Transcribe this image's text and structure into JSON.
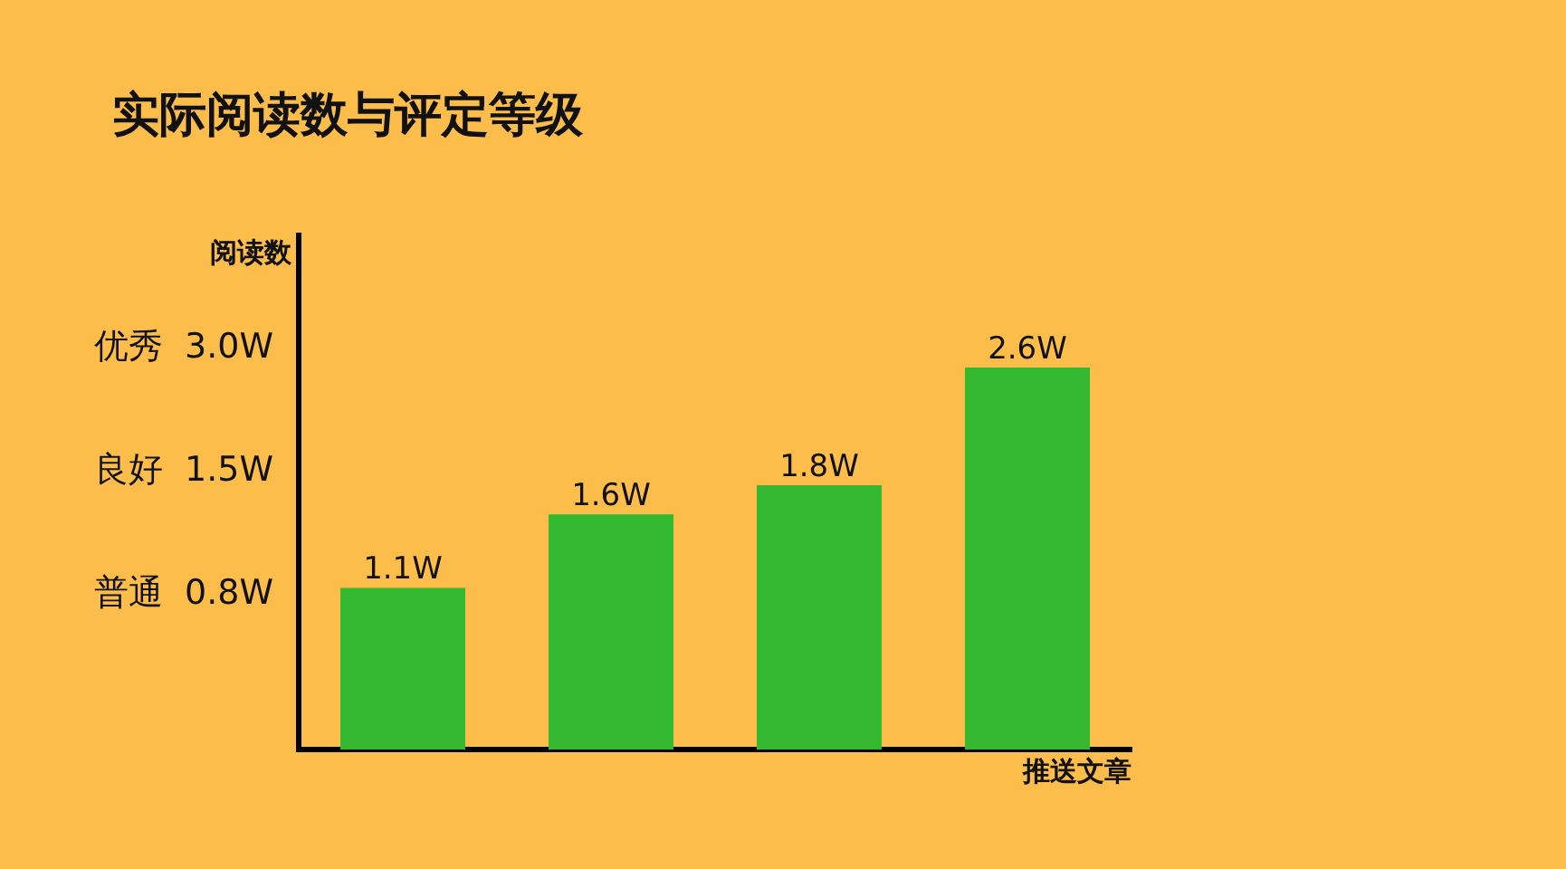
{
  "chart_data": {
    "type": "bar",
    "title": "实际阅读数与评定等级",
    "xlabel": "推送文章",
    "ylabel": "阅读数",
    "categories": [
      null,
      null,
      null,
      null
    ],
    "values": [
      1.1,
      1.6,
      1.8,
      2.6
    ],
    "value_labels": [
      "1.1W",
      "1.6W",
      "1.8W",
      "2.6W"
    ],
    "color": "#33b82f",
    "ylim": [
      0,
      3.5
    ],
    "annotations": [
      "优秀  3.0W",
      "良好  1.5W",
      "普通  0.8W"
    ]
  }
}
